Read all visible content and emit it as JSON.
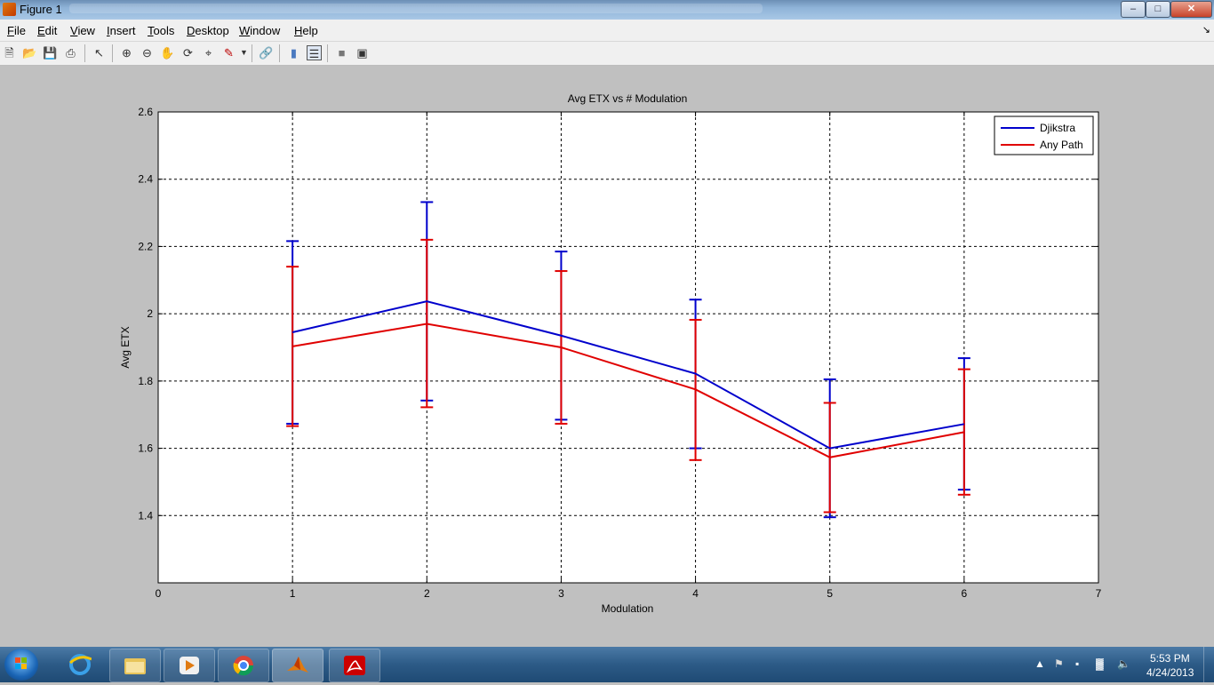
{
  "window": {
    "title": "Figure 1"
  },
  "menu": [
    "File",
    "Edit",
    "View",
    "Insert",
    "Tools",
    "Desktop",
    "Window",
    "Help"
  ],
  "toolbar": {
    "icons": [
      "new-figure-icon",
      "open-file-icon",
      "save-icon",
      "print-icon",
      "pointer-icon",
      "zoom-in-icon",
      "zoom-out-icon",
      "pan-icon",
      "rotate-icon",
      "data-cursor-icon",
      "brush-icon",
      "link-icon",
      "colorbar-icon",
      "legend-icon",
      "hide-tools-icon",
      "dock-icon"
    ]
  },
  "chart_data": {
    "type": "line",
    "title": "Avg ETX vs # Modulation",
    "xlabel": "Modulation",
    "ylabel": "Avg ETX",
    "xlim": [
      0,
      7
    ],
    "ylim": [
      1.2,
      2.6
    ],
    "x_ticks": [
      "0",
      "1",
      "2",
      "3",
      "4",
      "5",
      "6",
      "7"
    ],
    "y_ticks": [
      "1.4",
      "1.6",
      "1.8",
      "2",
      "2.2",
      "2.4",
      "2.6"
    ],
    "grid": true,
    "legend_position": "top-right",
    "x": [
      1,
      2,
      3,
      4,
      5,
      6
    ],
    "series": [
      {
        "name": "Djikstra",
        "color": "#0000cc",
        "values": [
          1.945,
          2.037,
          1.935,
          1.822,
          1.6,
          1.672
        ],
        "upper": [
          2.216,
          2.332,
          2.185,
          2.042,
          1.805,
          1.868
        ],
        "lower": [
          1.673,
          1.742,
          1.685,
          1.6,
          1.395,
          1.477
        ]
      },
      {
        "name": "Any Path",
        "color": "#e00000",
        "values": [
          1.903,
          1.97,
          1.9,
          1.775,
          1.573,
          1.648
        ],
        "upper": [
          2.14,
          2.22,
          2.127,
          1.982,
          1.735,
          1.835
        ],
        "lower": [
          1.666,
          1.722,
          1.673,
          1.565,
          1.41,
          1.462
        ]
      }
    ]
  },
  "taskbar": {
    "items": [
      "internet-explorer-icon",
      "file-explorer-icon",
      "media-player-icon",
      "chrome-icon",
      "matlab-icon",
      "acrobat-icon"
    ],
    "tray": {
      "time": "5:53 PM",
      "date": "4/24/2013"
    }
  },
  "colors": {
    "figure_bg": "#c0c0c0",
    "axes_bg": "#ffffff"
  }
}
